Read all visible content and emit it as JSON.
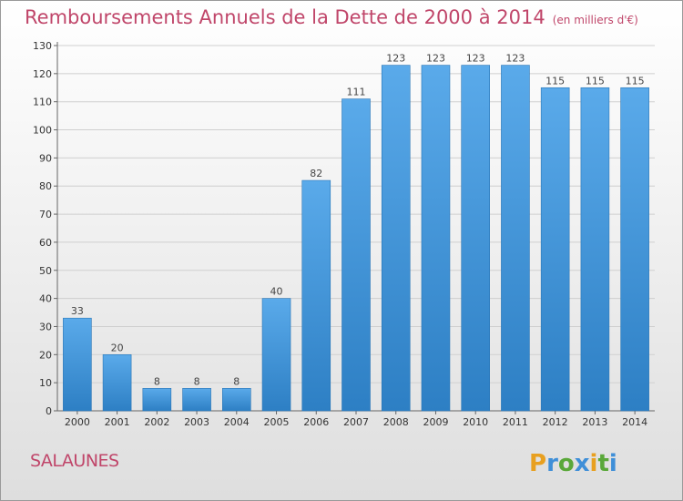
{
  "header": {
    "title": "Remboursements Annuels de la Dette de 2000 à 2014",
    "unit": "(en milliers d'€)"
  },
  "footer": {
    "commune": "SALAUNES",
    "logo_text": "Proxiti"
  },
  "colors": {
    "title": "#c0466a",
    "bar_top": "#5aaaea",
    "bar_bottom": "#2d7fc4",
    "grid": "#cfcfcf"
  },
  "chart_data": {
    "type": "bar",
    "title": "Remboursements Annuels de la Dette de 2000 à 2014",
    "xlabel": "",
    "ylabel": "",
    "categories": [
      "2000",
      "2001",
      "2002",
      "2003",
      "2004",
      "2005",
      "2006",
      "2007",
      "2008",
      "2009",
      "2010",
      "2011",
      "2012",
      "2013",
      "2014"
    ],
    "values": [
      33,
      20,
      8,
      8,
      8,
      40,
      82,
      111,
      123,
      123,
      123,
      123,
      115,
      115,
      115
    ],
    "ylim": [
      0,
      130
    ],
    "yticks": [
      0,
      10,
      20,
      30,
      40,
      50,
      60,
      70,
      80,
      90,
      100,
      110,
      120,
      130
    ],
    "grid": true,
    "data_labels": true
  }
}
